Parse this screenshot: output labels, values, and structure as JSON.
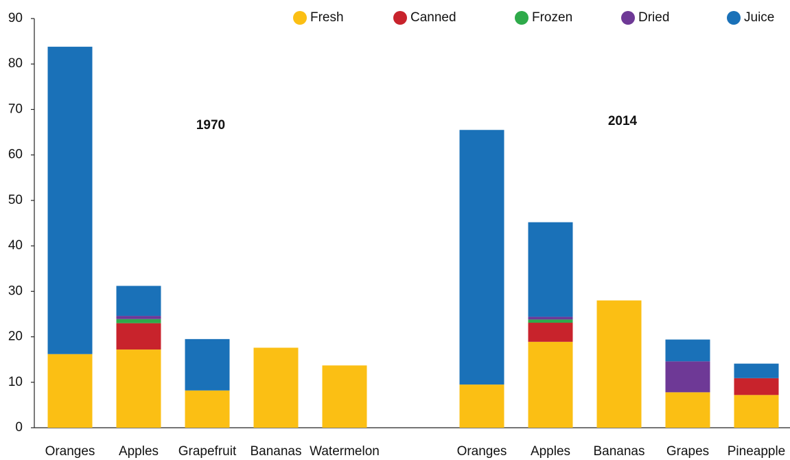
{
  "chart_data": {
    "type": "stacked_bar",
    "categories": [
      "Oranges",
      "Apples",
      "Grapefruit",
      "Bananas",
      "Watermelon",
      null,
      "Oranges",
      "Apples",
      "Bananas",
      "Grapes",
      "Pineapple"
    ],
    "series": [
      {
        "name": "Fresh",
        "color": "#fbbf14",
        "values": [
          16.2,
          17.2,
          8.2,
          17.6,
          13.7,
          null,
          9.5,
          18.9,
          28.0,
          7.8,
          7.2
        ]
      },
      {
        "name": "Canned",
        "color": "#c8232c",
        "values": [
          0,
          5.8,
          0,
          0,
          0,
          null,
          0,
          4.2,
          0,
          0,
          3.7
        ]
      },
      {
        "name": "Frozen",
        "color": "#2eaa4a",
        "values": [
          0,
          0.9,
          0,
          0,
          0,
          null,
          0,
          0.7,
          0,
          0,
          0
        ]
      },
      {
        "name": "Dried",
        "color": "#6e3996",
        "values": [
          0,
          0.7,
          0,
          0,
          0,
          null,
          0,
          0.6,
          0,
          6.8,
          0
        ]
      },
      {
        "name": "Juice",
        "color": "#1a71b8",
        "values": [
          67.6,
          6.6,
          11.3,
          0,
          0,
          null,
          56.0,
          20.8,
          0,
          4.8,
          3.2
        ]
      }
    ],
    "annotations": [
      "1970",
      "2014"
    ],
    "ylim": [
      0,
      90
    ],
    "yticks": [
      0,
      10,
      20,
      30,
      40,
      50,
      60,
      70,
      80,
      90
    ]
  }
}
